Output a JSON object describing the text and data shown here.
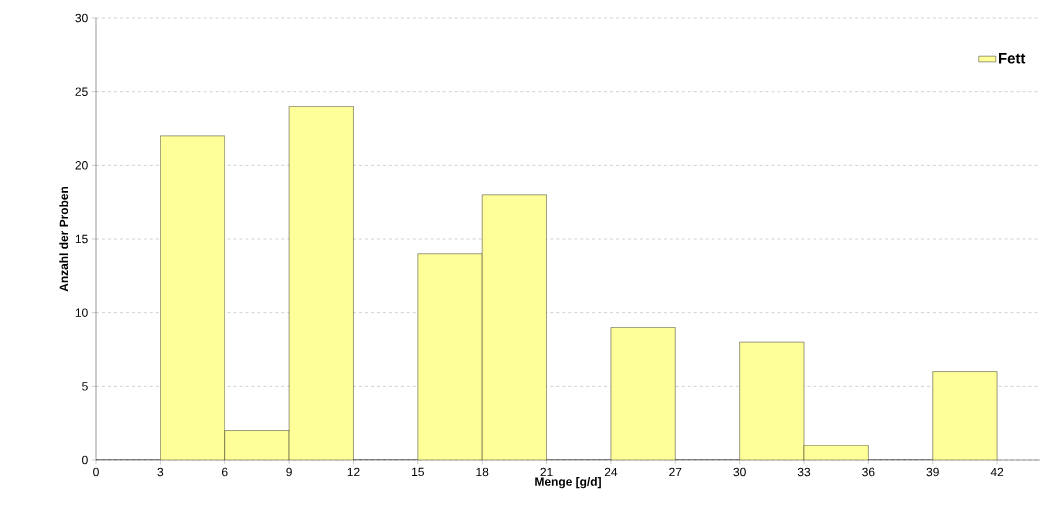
{
  "chart_data": {
    "type": "histogram",
    "xlabel": "Menge [g/d]",
    "ylabel": "Anzahl der Proben",
    "bins": [
      0,
      3,
      6,
      9,
      12,
      15,
      18,
      21,
      24,
      27,
      30,
      33,
      36,
      39,
      42
    ],
    "series": [
      {
        "name": "Fett",
        "color": "#ffff99",
        "values": [
          0,
          22,
          2,
          24,
          0,
          14,
          18,
          0,
          9,
          0,
          8,
          1,
          0,
          6
        ]
      }
    ],
    "xlim": [
      0,
      44
    ],
    "xticks": [
      0,
      3,
      6,
      9,
      12,
      15,
      18,
      21,
      24,
      27,
      30,
      33,
      36,
      39,
      42
    ],
    "ylim": [
      0,
      30
    ],
    "yticks": [
      0,
      5,
      10,
      15,
      20,
      25,
      30
    ],
    "grid": "y",
    "legend": "top right"
  }
}
